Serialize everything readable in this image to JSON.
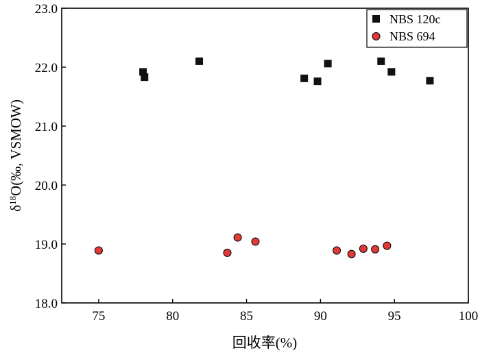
{
  "chart_data": {
    "type": "scatter",
    "xlabel": "回收率(%)",
    "ylabel_prefix": "δ",
    "ylabel_sup": "18",
    "ylabel_suffix": "O(‰, VSMOW)",
    "xlim": [
      72.5,
      100
    ],
    "ylim": [
      18.0,
      23.0
    ],
    "x_ticks": [
      75,
      80,
      85,
      90,
      95,
      100
    ],
    "x_tick_labels": [
      "75",
      "80",
      "85",
      "90",
      "95",
      "100"
    ],
    "y_ticks": [
      18,
      19,
      20,
      21,
      22,
      23
    ],
    "y_tick_labels": [
      "18.0",
      "19.0",
      "20.0",
      "21.0",
      "22.0",
      "23.0"
    ],
    "grid": false,
    "legend_position": "top-right",
    "series": [
      {
        "name": "NBS 120c",
        "marker": "square",
        "color": "#111111",
        "points": [
          {
            "x": 78.0,
            "y": 21.92
          },
          {
            "x": 78.1,
            "y": 21.83
          },
          {
            "x": 81.8,
            "y": 22.1
          },
          {
            "x": 88.9,
            "y": 21.81
          },
          {
            "x": 89.8,
            "y": 21.76
          },
          {
            "x": 90.5,
            "y": 22.06
          },
          {
            "x": 94.1,
            "y": 22.1
          },
          {
            "x": 94.8,
            "y": 21.92
          },
          {
            "x": 97.4,
            "y": 21.77
          }
        ]
      },
      {
        "name": "NBS 694",
        "marker": "circle",
        "color": "#e03a36",
        "points": [
          {
            "x": 75.0,
            "y": 18.89
          },
          {
            "x": 83.7,
            "y": 18.85
          },
          {
            "x": 84.4,
            "y": 19.11
          },
          {
            "x": 85.6,
            "y": 19.04
          },
          {
            "x": 91.1,
            "y": 18.89
          },
          {
            "x": 92.1,
            "y": 18.83
          },
          {
            "x": 92.9,
            "y": 18.92
          },
          {
            "x": 93.7,
            "y": 18.91
          },
          {
            "x": 94.5,
            "y": 18.97
          }
        ]
      }
    ]
  }
}
